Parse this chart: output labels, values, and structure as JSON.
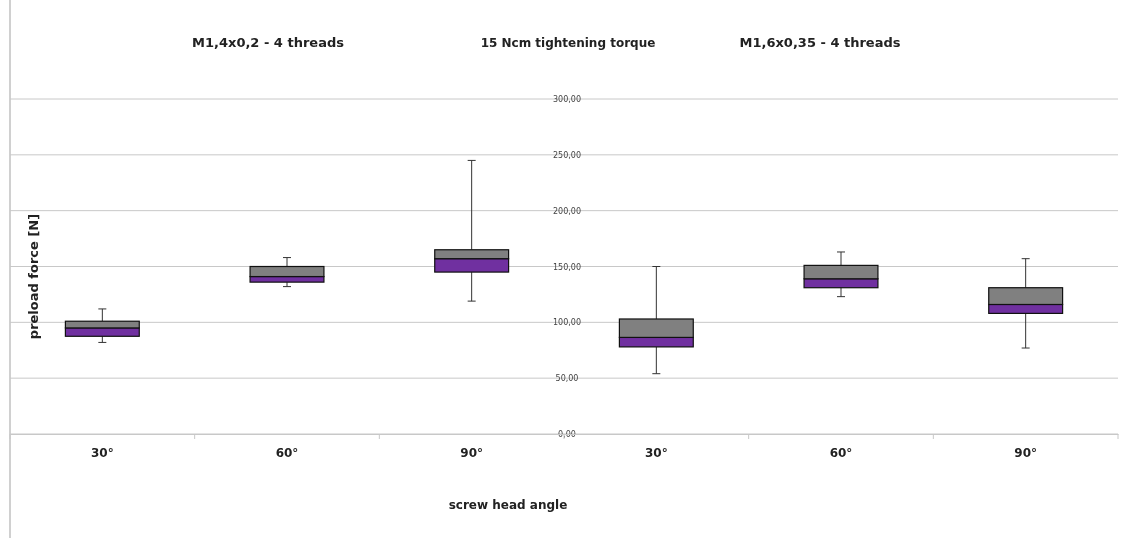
{
  "chart_data": {
    "type": "box",
    "title": "15 Ncm tightening torque",
    "xlabel": "screw head angle",
    "ylabel": "preload force [N]",
    "annotations": [
      "M1,4x0,2 - 4 threads",
      "M1,6x0,35 - 4 threads"
    ],
    "categories": [
      "30°",
      "60°",
      "90°",
      "30°",
      "60°",
      "90°"
    ],
    "series": [
      {
        "color": "#808080",
        "colors": [
          "#7030a0",
          "#7030a0",
          "#7030a0",
          "#7030a0",
          "#7030a0",
          "#7030a0"
        ],
        "boxes": [
          {
            "low": 82,
            "q1": 87.5,
            "median": 95,
            "q3": 101,
            "high": 112
          },
          {
            "low": 132,
            "q1": 136,
            "median": 141,
            "q3": 150,
            "high": 158
          },
          {
            "low": 119,
            "q1": 145,
            "median": 157,
            "q3": 165,
            "high": 245
          },
          {
            "low": 54,
            "q1": 78,
            "median": 86.5,
            "q3": 103,
            "high": 150
          },
          {
            "low": 123,
            "q1": 131,
            "median": 139,
            "q3": 151,
            "high": 163
          },
          {
            "low": 77,
            "q1": 108,
            "median": 116,
            "q3": 131,
            "high": 157
          }
        ]
      }
    ],
    "ylim": [
      0,
      300
    ],
    "yticks": [
      {
        "value": 0,
        "label": "0,00"
      },
      {
        "value": 50,
        "label": "50,00"
      },
      {
        "value": 100,
        "label": "100,00"
      },
      {
        "value": 150,
        "label": "150,00"
      },
      {
        "value": 200,
        "label": "200,00"
      },
      {
        "value": 250,
        "label": "250,00"
      },
      {
        "value": 300,
        "label": "300,00"
      }
    ],
    "grid": "y"
  }
}
